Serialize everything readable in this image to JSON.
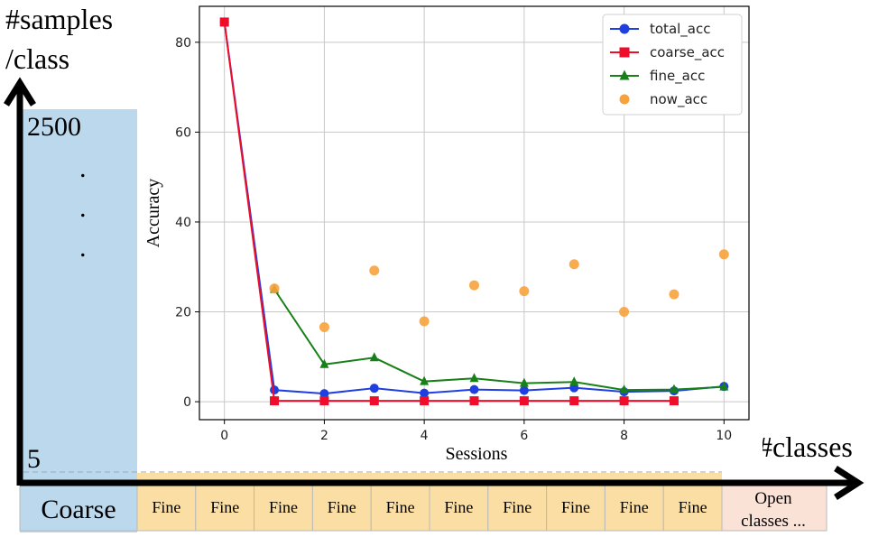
{
  "axes": {
    "ylabel_line1": "#samples",
    "ylabel_line2": "/class",
    "xlabel": "#classes",
    "y_top_tick": "2500",
    "y_bottom_tick": "5",
    "ellipsis": ".",
    "dot_count": 3
  },
  "sessions_bar": {
    "coarse_label": "Coarse",
    "fine_labels": [
      "Fine",
      "Fine",
      "Fine",
      "Fine",
      "Fine",
      "Fine",
      "Fine",
      "Fine",
      "Fine",
      "Fine"
    ],
    "open_label_line1": "Open",
    "open_label_line2": "classes ..."
  },
  "colors": {
    "coarse_block": "#bcd8ec",
    "fine_block": "#fbdea3",
    "open_block": "#fbe2d6",
    "total": "#1f3fe0",
    "coarse": "#ee0d2a",
    "fine": "#188019",
    "now": "#f7a23c"
  },
  "chart_data": {
    "type": "line",
    "xlabel": "Sessions",
    "ylabel": "Accuracy",
    "xlim": [
      -0.5,
      10.5
    ],
    "ylim": [
      -4,
      88
    ],
    "xticks": [
      0,
      2,
      4,
      6,
      8,
      10
    ],
    "yticks": [
      0,
      20,
      40,
      60,
      80
    ],
    "grid": true,
    "legend_position": "top-right",
    "series": [
      {
        "name": "total_acc",
        "marker": "circle",
        "style": "line",
        "color": "#1f3fe0",
        "x": [
          0,
          1,
          2,
          3,
          4,
          5,
          6,
          7,
          8,
          9,
          10
        ],
        "y": [
          84.5,
          2.6,
          1.8,
          3.0,
          1.9,
          2.7,
          2.5,
          3.1,
          2.2,
          2.4,
          3.4
        ]
      },
      {
        "name": "coarse_acc",
        "marker": "square",
        "style": "line",
        "color": "#ee0d2a",
        "x": [
          0,
          1,
          2,
          3,
          4,
          5,
          6,
          7,
          8,
          9
        ],
        "y": [
          84.5,
          0.2,
          0.2,
          0.2,
          0.2,
          0.2,
          0.2,
          0.2,
          0.2,
          0.2
        ]
      },
      {
        "name": "fine_acc",
        "marker": "triangle",
        "style": "line",
        "color": "#188019",
        "x": [
          1,
          2,
          3,
          4,
          5,
          6,
          7,
          8,
          9,
          10
        ],
        "y": [
          25.0,
          8.3,
          9.8,
          4.5,
          5.2,
          4.1,
          4.4,
          2.6,
          2.7,
          3.3
        ]
      },
      {
        "name": "now_acc",
        "marker": "circle",
        "style": "scatter",
        "color": "#f7a23c",
        "x": [
          1,
          2,
          3,
          4,
          5,
          6,
          7,
          8,
          9,
          10
        ],
        "y": [
          25.2,
          16.6,
          29.2,
          17.9,
          25.9,
          24.6,
          30.6,
          20.0,
          23.9,
          32.8
        ]
      }
    ]
  }
}
